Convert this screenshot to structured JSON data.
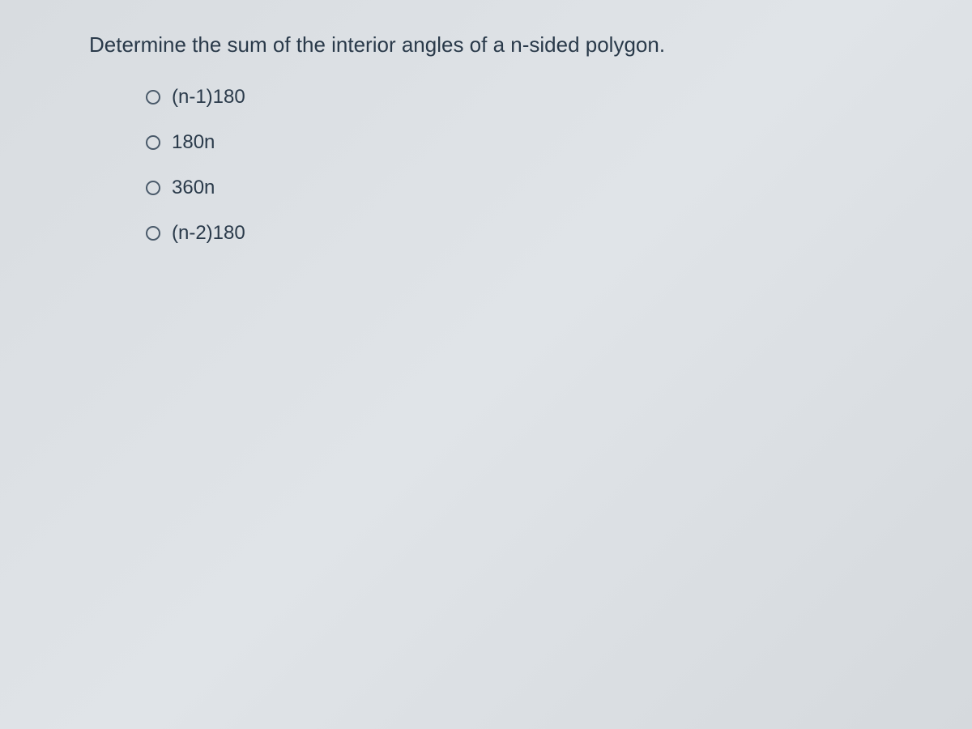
{
  "quiz": {
    "question": "Determine the sum of the interior angles of a n-sided polygon.",
    "question_color": "#2a3a4a",
    "question_fontsize": 26,
    "options": [
      {
        "label": "(n-1)180",
        "selected": false
      },
      {
        "label": "180n",
        "selected": false
      },
      {
        "label": "360n",
        "selected": false
      },
      {
        "label": "(n-2)180",
        "selected": false
      }
    ],
    "option_color": "#2a3a4a",
    "option_fontsize": 24,
    "radio_border_color": "#4a5a6a",
    "background_color": "#dce0e4"
  }
}
